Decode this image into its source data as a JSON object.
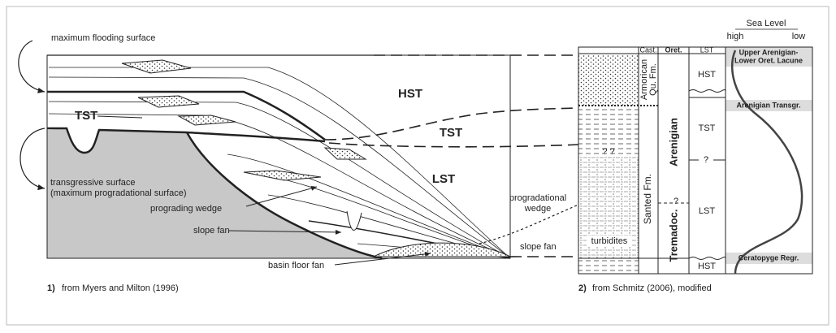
{
  "left_panel": {
    "number": "1)",
    "caption": "from Myers and Milton (1996)",
    "max_flooding_surface": "maximum flooding surface",
    "tst": "TST",
    "transgressive_surface": [
      "transgressive surface",
      "(maximum progradational surface)"
    ],
    "prograding_wedge": "prograding wedge",
    "slope_fan": "slope fan",
    "basin_floor_fan": "basin floor fan"
  },
  "middle_labels": {
    "hst": "HST",
    "tst": "TST",
    "lst": "LST",
    "progradational_wedge": [
      "progradational",
      "wedge"
    ],
    "slope_fan": "slope fan"
  },
  "right_panel": {
    "number": "2)",
    "caption": "from Schmitz (2006), modified",
    "sea_level": "Sea Level",
    "high": "high",
    "low": "low",
    "headers": {
      "cast": "Cast.",
      "oret": "Oret.",
      "lst": "LST"
    },
    "formations": {
      "armorican": [
        "Armorican",
        "Qu. Fm."
      ],
      "santed": "Santed Fm.",
      "turbidites": "turbidites",
      "question": "? ?"
    },
    "stages": {
      "arenigian": "Arenigian",
      "tremadoc": "Tremadoc.",
      "question": "?"
    },
    "systems_tracts": [
      "HST",
      "TST",
      "LST",
      "HST"
    ],
    "tract_question": "?",
    "events": {
      "lacune": [
        "Upper Arenigian-",
        "Lower Oret. Lacune"
      ],
      "transgression": "Arenigian Transgr.",
      "regression": "Ceratopyge Regr."
    }
  }
}
